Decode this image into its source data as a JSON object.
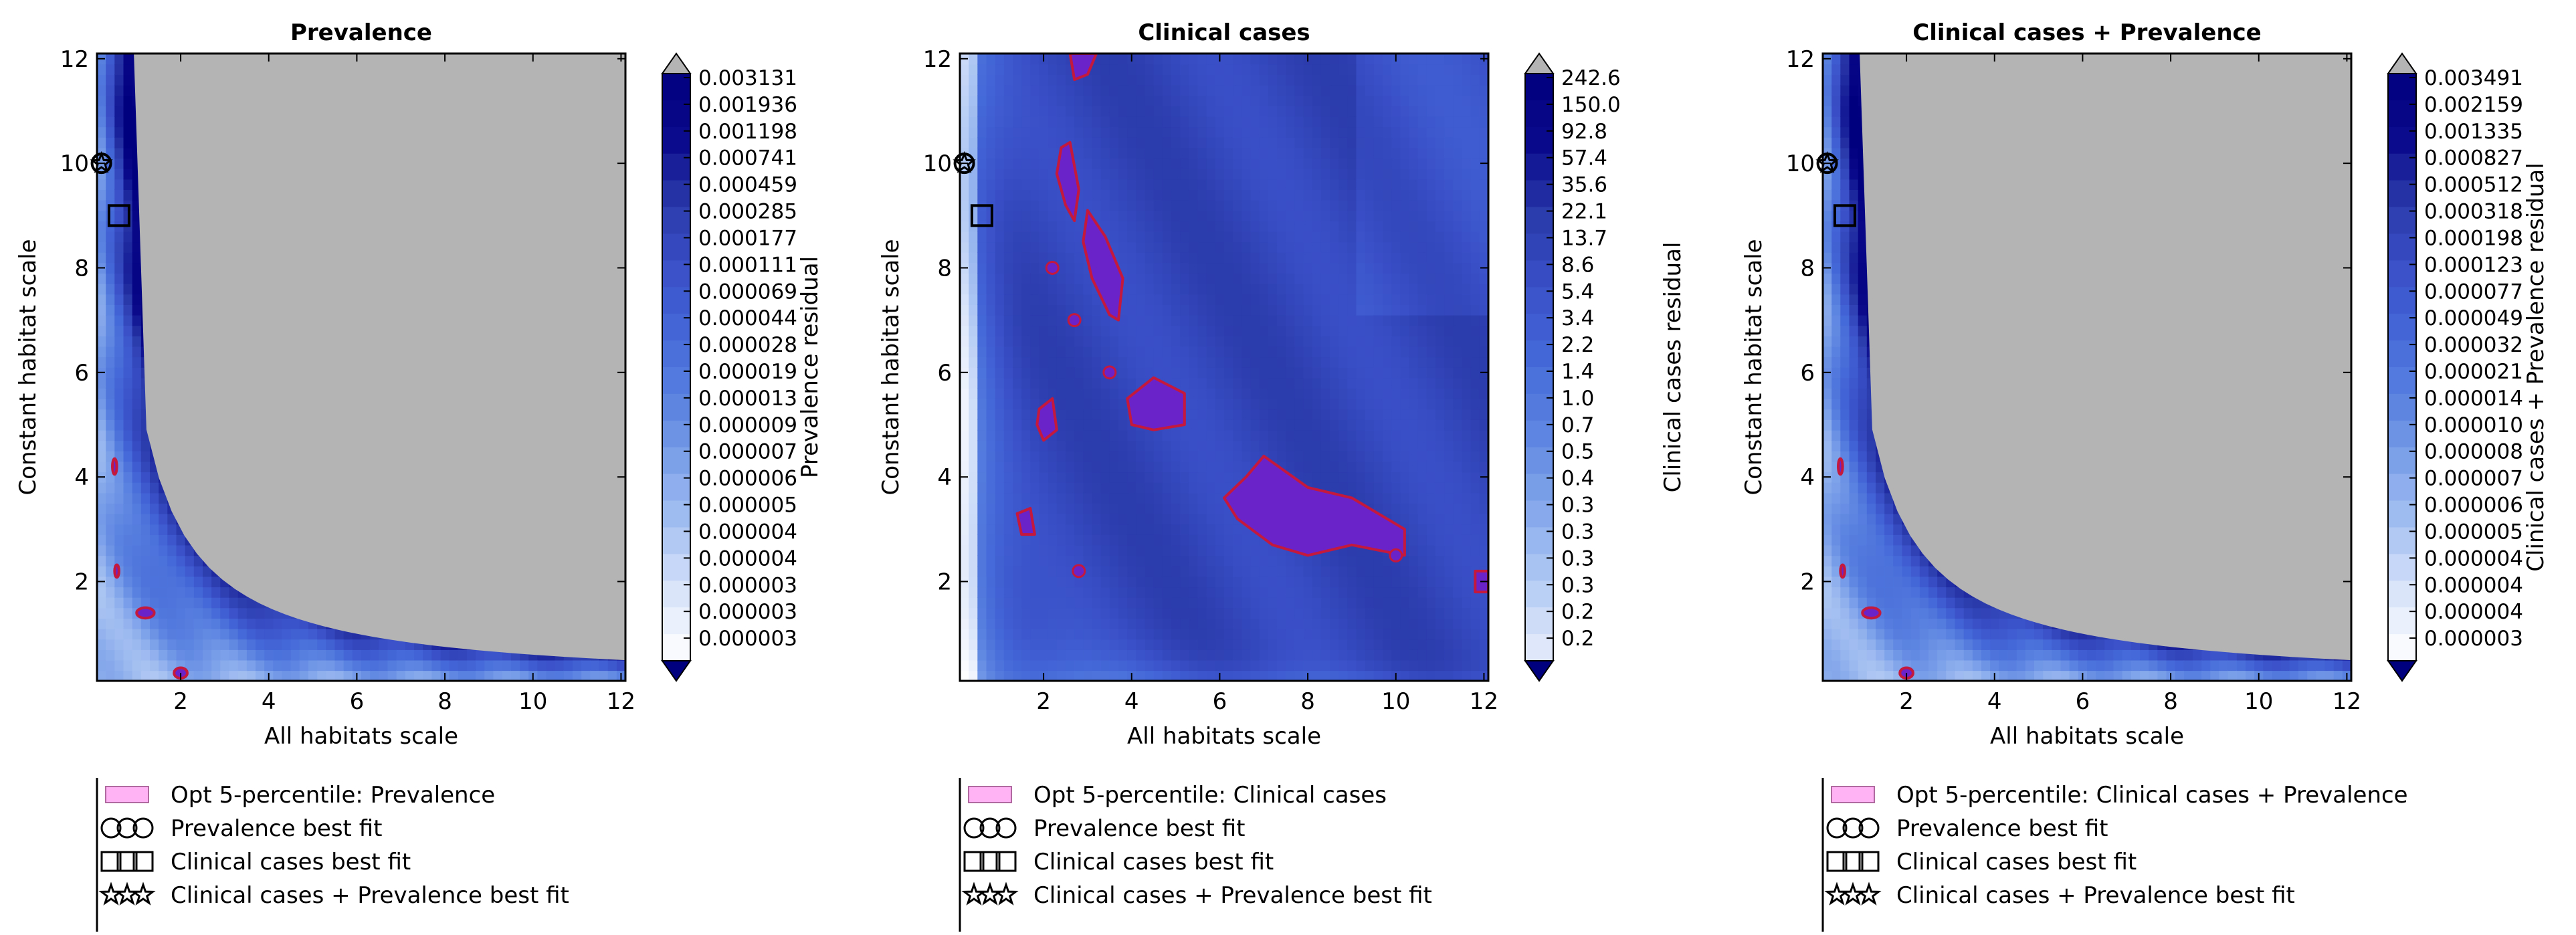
{
  "chart_data": [
    {
      "type": "heatmap",
      "title": "Prevalence",
      "xlabel": "All habitats scale",
      "ylabel": "Constant habitat scale",
      "xlim": [
        0.1,
        12.1
      ],
      "ylim": [
        0.1,
        12.1
      ],
      "xticks": [
        "2",
        "4",
        "6",
        "8",
        "10",
        "12"
      ],
      "yticks": [
        "2",
        "4",
        "6",
        "8",
        "10",
        "12"
      ],
      "surface": "residual-decreasing",
      "colorbar": {
        "label": "Prevalence residual",
        "ticks": [
          "0.003131",
          "0.001936",
          "0.001198",
          "0.000741",
          "0.000459",
          "0.000285",
          "0.000177",
          "0.000111",
          "0.000069",
          "0.000044",
          "0.000028",
          "0.000019",
          "0.000013",
          "0.000009",
          "0.000007",
          "0.000006",
          "0.000005",
          "0.000004",
          "0.000004",
          "0.000003",
          "0.000003",
          "0.000003"
        ]
      },
      "markers": [
        {
          "kind": "circle",
          "x": 0.2,
          "y": 10
        },
        {
          "kind": "star",
          "x": 0.2,
          "y": 10
        },
        {
          "kind": "square",
          "x": 0.6,
          "y": 9
        }
      ],
      "legend": {
        "placement": "below",
        "entries": [
          "Opt 5-percentile: Prevalence",
          "Prevalence best fit",
          "Clinical cases best fit",
          "Clinical cases + Prevalence best fit"
        ]
      }
    },
    {
      "type": "heatmap",
      "title": "Clinical cases",
      "xlabel": "All habitats scale",
      "ylabel": "Constant habitat scale",
      "xlim": [
        0.1,
        12.1
      ],
      "ylim": [
        0.1,
        12.1
      ],
      "xticks": [
        "2",
        "4",
        "6",
        "8",
        "10",
        "12"
      ],
      "yticks": [
        "2",
        "4",
        "6",
        "8",
        "10",
        "12"
      ],
      "surface": "clinical",
      "colorbar": {
        "label": "Clinical cases residual",
        "ticks": [
          "242.6",
          "150.0",
          "92.8",
          "57.4",
          "35.6",
          "22.1",
          "13.7",
          "8.6",
          "5.4",
          "3.4",
          "2.2",
          "1.4",
          "1.0",
          "0.7",
          "0.5",
          "0.4",
          "0.3",
          "0.3",
          "0.3",
          "0.3",
          "0.2",
          "0.2"
        ]
      },
      "markers": [
        {
          "kind": "circle",
          "x": 0.2,
          "y": 10
        },
        {
          "kind": "star",
          "x": 0.2,
          "y": 10
        },
        {
          "kind": "square",
          "x": 0.6,
          "y": 9
        }
      ],
      "legend": {
        "placement": "below",
        "entries": [
          "Opt 5-percentile: Clinical cases",
          "Prevalence best fit",
          "Clinical cases best fit",
          "Clinical cases + Prevalence best fit"
        ]
      }
    },
    {
      "type": "heatmap",
      "title": "Clinical cases + Prevalence",
      "xlabel": "All habitats scale",
      "ylabel": "Constant habitat scale",
      "xlim": [
        0.1,
        12.1
      ],
      "ylim": [
        0.1,
        12.1
      ],
      "xticks": [
        "2",
        "4",
        "6",
        "8",
        "10",
        "12"
      ],
      "yticks": [
        "2",
        "4",
        "6",
        "8",
        "10",
        "12"
      ],
      "surface": "residual-decreasing",
      "colorbar": {
        "label": "Clinical cases + Prevalence residual",
        "ticks": [
          "0.003491",
          "0.002159",
          "0.001335",
          "0.000827",
          "0.000512",
          "0.000318",
          "0.000198",
          "0.000123",
          "0.000077",
          "0.000049",
          "0.000032",
          "0.000021",
          "0.000014",
          "0.000010",
          "0.000008",
          "0.000007",
          "0.000006",
          "0.000005",
          "0.000004",
          "0.000004",
          "0.000004",
          "0.000003"
        ]
      },
      "markers": [
        {
          "kind": "circle",
          "x": 0.2,
          "y": 10
        },
        {
          "kind": "star",
          "x": 0.2,
          "y": 10
        },
        {
          "kind": "square",
          "x": 0.6,
          "y": 9
        }
      ],
      "legend": {
        "placement": "below",
        "entries": [
          "Opt 5-percentile: Clinical cases + Prevalence",
          "Prevalence best fit",
          "Clinical cases best fit",
          "Clinical cases + Prevalence best fit"
        ]
      }
    }
  ],
  "colors": {
    "nan_region": "#b4b4b4",
    "optimum_fill": "#6a23c8",
    "optimum_edge": "#c4193c",
    "legend_patch": "#ffb3f5",
    "cmap": [
      "#ffffff",
      "#dce6fa",
      "#aac4f2",
      "#7fa3ea",
      "#5a82e0",
      "#4468d8",
      "#3a50c8",
      "#2a3aaa",
      "#0a0a8c",
      "#00007f"
    ]
  }
}
